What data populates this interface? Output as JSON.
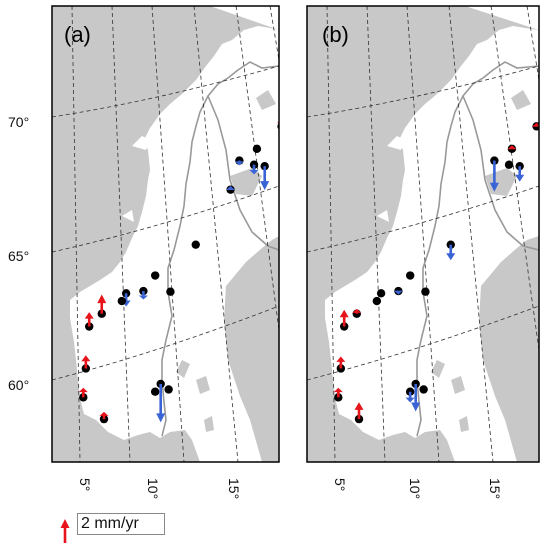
{
  "panels": [
    {
      "label": "(a)",
      "stations": [
        {
          "lat": 70.96,
          "lon": 25.95,
          "arrow": null
        },
        {
          "lat": 71.07,
          "lon": 28.23,
          "arrow": null
        },
        {
          "lat": 70.7,
          "lon": 23.8,
          "arrow": {
            "dir": "up",
            "mag": 2.5,
            "color": "red"
          }
        },
        {
          "lat": 69.7,
          "lon": 18.95,
          "arrow": {
            "dir": "up",
            "mag": 0.6,
            "color": "red"
          }
        },
        {
          "lat": 68.85,
          "lon": 16.6,
          "arrow": null
        },
        {
          "lat": 68.4,
          "lon": 15.0,
          "arrow": {
            "dir": "down",
            "mag": 0.4,
            "color": "blue"
          }
        },
        {
          "lat": 68.25,
          "lon": 16.4,
          "arrow": {
            "dir": "down",
            "mag": 0.8,
            "color": "blue"
          }
        },
        {
          "lat": 68.2,
          "lon": 17.4,
          "arrow": {
            "dir": "down",
            "mag": 2.0,
            "color": "blue"
          }
        },
        {
          "lat": 67.3,
          "lon": 14.4,
          "arrow": {
            "dir": "up",
            "mag": 0.3,
            "color": "blue"
          }
        },
        {
          "lat": 65.2,
          "lon": 11.9,
          "arrow": null
        },
        {
          "lat": 64.0,
          "lon": 9.0,
          "arrow": null
        },
        {
          "lat": 63.4,
          "lon": 10.4,
          "arrow": null
        },
        {
          "lat": 63.4,
          "lon": 8.3,
          "arrow": {
            "dir": "down",
            "mag": 0.7,
            "color": "blue"
          }
        },
        {
          "lat": 63.3,
          "lon": 7.0,
          "arrow": {
            "dir": "down",
            "mag": 1.1,
            "color": "blue"
          }
        },
        {
          "lat": 63.0,
          "lon": 6.8,
          "arrow": null
        },
        {
          "lat": 62.5,
          "lon": 5.5,
          "arrow": {
            "dir": "up",
            "mag": 1.6,
            "color": "red"
          }
        },
        {
          "lat": 62.0,
          "lon": 4.8,
          "arrow": {
            "dir": "up",
            "mag": 1.2,
            "color": "red"
          }
        },
        {
          "lat": 60.4,
          "lon": 5.3,
          "arrow": {
            "dir": "up",
            "mag": 1.1,
            "color": "red"
          }
        },
        {
          "lat": 59.3,
          "lon": 5.6,
          "arrow": {
            "dir": "up",
            "mag": 0.8,
            "color": "red"
          }
        },
        {
          "lat": 58.5,
          "lon": 7.3,
          "arrow": {
            "dir": "up",
            "mag": 0.6,
            "color": "red"
          }
        },
        {
          "lat": 59.9,
          "lon": 10.7,
          "arrow": {
            "dir": "down",
            "mag": 3.2,
            "color": "blue"
          }
        },
        {
          "lat": 59.6,
          "lon": 10.4,
          "arrow": null
        },
        {
          "lat": 59.7,
          "lon": 11.3,
          "arrow": null
        }
      ]
    },
    {
      "label": "(b)",
      "stations": [
        {
          "lat": 70.96,
          "lon": 25.95,
          "arrow": null
        },
        {
          "lat": 71.07,
          "lon": 28.23,
          "arrow": {
            "dir": "up",
            "mag": 0.4,
            "color": "red"
          }
        },
        {
          "lat": 70.7,
          "lon": 23.8,
          "arrow": {
            "dir": "up",
            "mag": 1.5,
            "color": "red"
          }
        },
        {
          "lat": 69.7,
          "lon": 18.95,
          "arrow": {
            "dir": "up",
            "mag": 0.3,
            "color": "red"
          }
        },
        {
          "lat": 68.85,
          "lon": 16.6,
          "arrow": {
            "dir": "up",
            "mag": 0.3,
            "color": "red"
          }
        },
        {
          "lat": 68.4,
          "lon": 15.0,
          "arrow": {
            "dir": "down",
            "mag": 2.6,
            "color": "blue"
          }
        },
        {
          "lat": 68.25,
          "lon": 16.4,
          "arrow": null
        },
        {
          "lat": 68.2,
          "lon": 17.4,
          "arrow": {
            "dir": "down",
            "mag": 1.3,
            "color": "blue"
          }
        },
        {
          "lat": 65.2,
          "lon": 11.9,
          "arrow": {
            "dir": "down",
            "mag": 1.3,
            "color": "blue"
          }
        },
        {
          "lat": 64.0,
          "lon": 9.0,
          "arrow": null
        },
        {
          "lat": 63.4,
          "lon": 10.4,
          "arrow": null
        },
        {
          "lat": 63.4,
          "lon": 8.3,
          "arrow": {
            "dir": "down",
            "mag": 0.3,
            "color": "blue"
          }
        },
        {
          "lat": 63.3,
          "lon": 7.0,
          "arrow": null
        },
        {
          "lat": 63.0,
          "lon": 6.8,
          "arrow": null
        },
        {
          "lat": 62.5,
          "lon": 5.5,
          "arrow": {
            "dir": "up",
            "mag": 0.4,
            "color": "red"
          }
        },
        {
          "lat": 62.0,
          "lon": 4.8,
          "arrow": {
            "dir": "up",
            "mag": 1.4,
            "color": "red"
          }
        },
        {
          "lat": 60.4,
          "lon": 5.3,
          "arrow": {
            "dir": "up",
            "mag": 1.0,
            "color": "red"
          }
        },
        {
          "lat": 59.3,
          "lon": 5.6,
          "arrow": {
            "dir": "up",
            "mag": 0.8,
            "color": "red"
          }
        },
        {
          "lat": 58.5,
          "lon": 7.3,
          "arrow": {
            "dir": "up",
            "mag": 1.4,
            "color": "red"
          }
        },
        {
          "lat": 59.9,
          "lon": 10.7,
          "arrow": {
            "dir": "down",
            "mag": 2.3,
            "color": "blue"
          }
        },
        {
          "lat": 59.6,
          "lon": 10.4,
          "arrow": {
            "dir": "down",
            "mag": 0.9,
            "color": "blue"
          }
        },
        {
          "lat": 59.7,
          "lon": 11.3,
          "arrow": null
        }
      ]
    }
  ],
  "lat_labels": [
    "70°",
    "65°",
    "60°"
  ],
  "lon_labels": [
    "5°",
    "10°",
    "15°"
  ],
  "legend": {
    "text": "2 mm/yr",
    "mag": 2,
    "color": "red"
  },
  "colors": {
    "up": "#e8141c",
    "down": "#3a63d6",
    "sea": "#c8c8c8",
    "land": "#ffffff",
    "lake": "#c8c8c8",
    "station": "#000000"
  }
}
